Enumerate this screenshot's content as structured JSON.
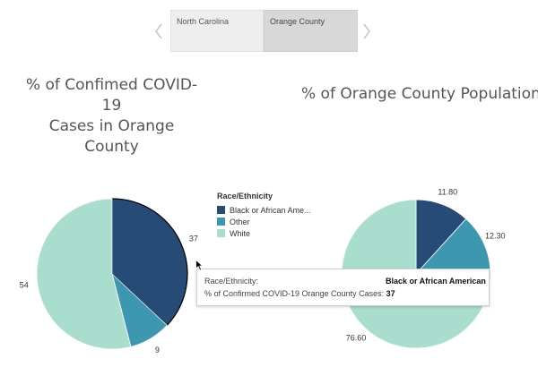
{
  "tabs": [
    {
      "label": "North Carolina"
    },
    {
      "label": "Orange County",
      "selected": true
    }
  ],
  "titles": {
    "left_line1": "% of Confimed COVID-19",
    "left_line2": "Cases in Orange County",
    "right": "% of Orange County Population"
  },
  "legend": {
    "title": "Race/Ethnicity",
    "items": [
      {
        "label": "Black or African Ame...",
        "color": "#264b76"
      },
      {
        "label": "Other",
        "color": "#3d97b0"
      },
      {
        "label": "White",
        "color": "#a9dece"
      }
    ]
  },
  "tooltip": {
    "row1_label": "Race/Ethnicity:",
    "row1_value": "Black or African American",
    "row2_label": "% of Confirmed COVID-19 Orange County Cases:",
    "row2_value": "37"
  },
  "chart_data": [
    {
      "type": "pie",
      "title": "% of Confimed COVID-19 Cases in Orange County",
      "categories": [
        "Black or African American",
        "Other",
        "White"
      ],
      "values": [
        37,
        9,
        54
      ],
      "labels": [
        "37",
        "9",
        "54"
      ],
      "colors": [
        "#264b76",
        "#3d97b0",
        "#a9dece"
      ],
      "highlighted": "Black or African American"
    },
    {
      "type": "pie",
      "title": "% of Orange County Population",
      "categories": [
        "Black or African American",
        "Other",
        "White"
      ],
      "values": [
        11.8,
        12.3,
        76.6
      ],
      "labels": [
        "11.80",
        "12.30",
        "76.60"
      ],
      "colors": [
        "#264b76",
        "#3d97b0",
        "#a9dece"
      ]
    }
  ]
}
